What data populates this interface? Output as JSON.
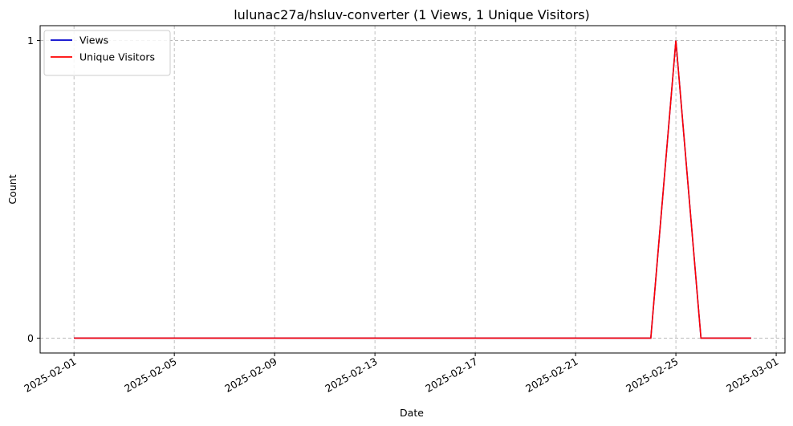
{
  "chart_data": {
    "type": "line",
    "title": "lulunac27a/hsluv-converter (1 Views, 1 Unique Visitors)",
    "xlabel": "Date",
    "ylabel": "Count",
    "x": [
      "2025-02-01",
      "2025-02-02",
      "2025-02-03",
      "2025-02-04",
      "2025-02-05",
      "2025-02-06",
      "2025-02-07",
      "2025-02-08",
      "2025-02-09",
      "2025-02-10",
      "2025-02-11",
      "2025-02-12",
      "2025-02-13",
      "2025-02-14",
      "2025-02-15",
      "2025-02-16",
      "2025-02-17",
      "2025-02-18",
      "2025-02-19",
      "2025-02-20",
      "2025-02-21",
      "2025-02-22",
      "2025-02-23",
      "2025-02-24",
      "2025-02-25",
      "2025-02-26",
      "2025-02-27",
      "2025-02-28"
    ],
    "series": [
      {
        "name": "Views",
        "color": "#0000cc",
        "values": [
          0,
          0,
          0,
          0,
          0,
          0,
          0,
          0,
          0,
          0,
          0,
          0,
          0,
          0,
          0,
          0,
          0,
          0,
          0,
          0,
          0,
          0,
          0,
          0,
          1,
          0,
          0,
          0
        ]
      },
      {
        "name": "Unique Visitors",
        "color": "#ff0000",
        "values": [
          0,
          0,
          0,
          0,
          0,
          0,
          0,
          0,
          0,
          0,
          0,
          0,
          0,
          0,
          0,
          0,
          0,
          0,
          0,
          0,
          0,
          0,
          0,
          0,
          1,
          0,
          0,
          0
        ]
      }
    ],
    "x_ticks": [
      "2025-02-01",
      "2025-02-05",
      "2025-02-09",
      "2025-02-13",
      "2025-02-17",
      "2025-02-21",
      "2025-02-25",
      "2025-03-01"
    ],
    "y_ticks": [
      0,
      1
    ],
    "ylim": [
      0,
      1
    ],
    "grid": true,
    "grid_style": "dashed",
    "legend_position": "upper-left"
  }
}
